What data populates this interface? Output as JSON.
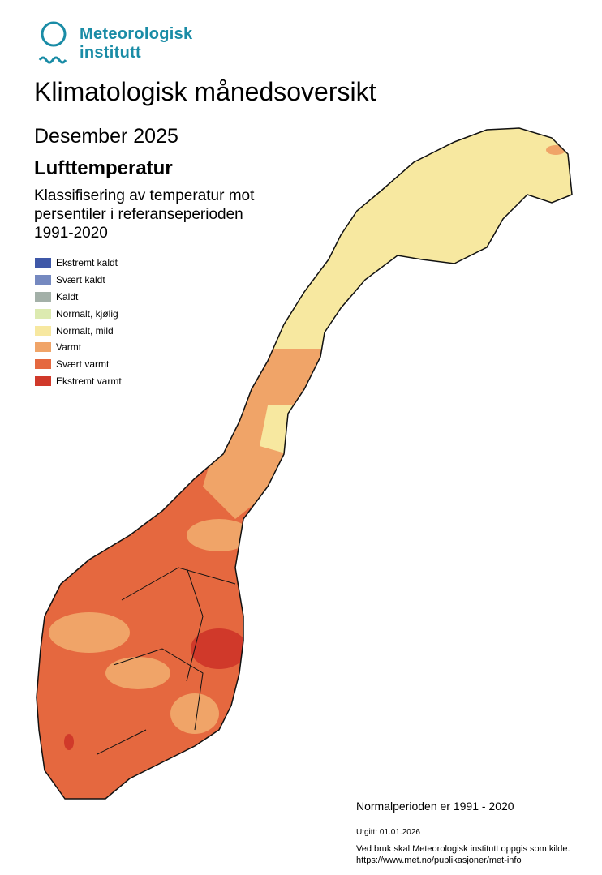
{
  "logo": {
    "line1": "Meteorologisk",
    "line2": "institutt"
  },
  "title": "Klimatologisk månedsoversikt",
  "month": "Desember 2025",
  "variable": "Lufttemperatur",
  "description": [
    "Klassifisering av temperatur mot",
    "persentiler i referanseperioden",
    "1991-2020"
  ],
  "legend": [
    {
      "label": "Ekstremt kaldt",
      "color": "#3f58a8"
    },
    {
      "label": "Svært kaldt",
      "color": "#7589c0"
    },
    {
      "label": "Kaldt",
      "color": "#a3b0a8"
    },
    {
      "label": "Normalt, kjølig",
      "color": "#dceab0"
    },
    {
      "label": "Normalt, mild",
      "color": "#f7e8a0"
    },
    {
      "label": "Varmt",
      "color": "#f0a468"
    },
    {
      "label": "Svært varmt",
      "color": "#e5683f"
    },
    {
      "label": "Ekstremt varmt",
      "color": "#d0392a"
    }
  ],
  "normal_period": "Normalperioden er 1991 - 2020",
  "issued": "Utgitt: 01.01.2026",
  "source": [
    "Ved bruk skal Meteorologisk institutt oppgis som kilde.",
    "https://www.met.no/publikasjoner/met-info"
  ]
}
